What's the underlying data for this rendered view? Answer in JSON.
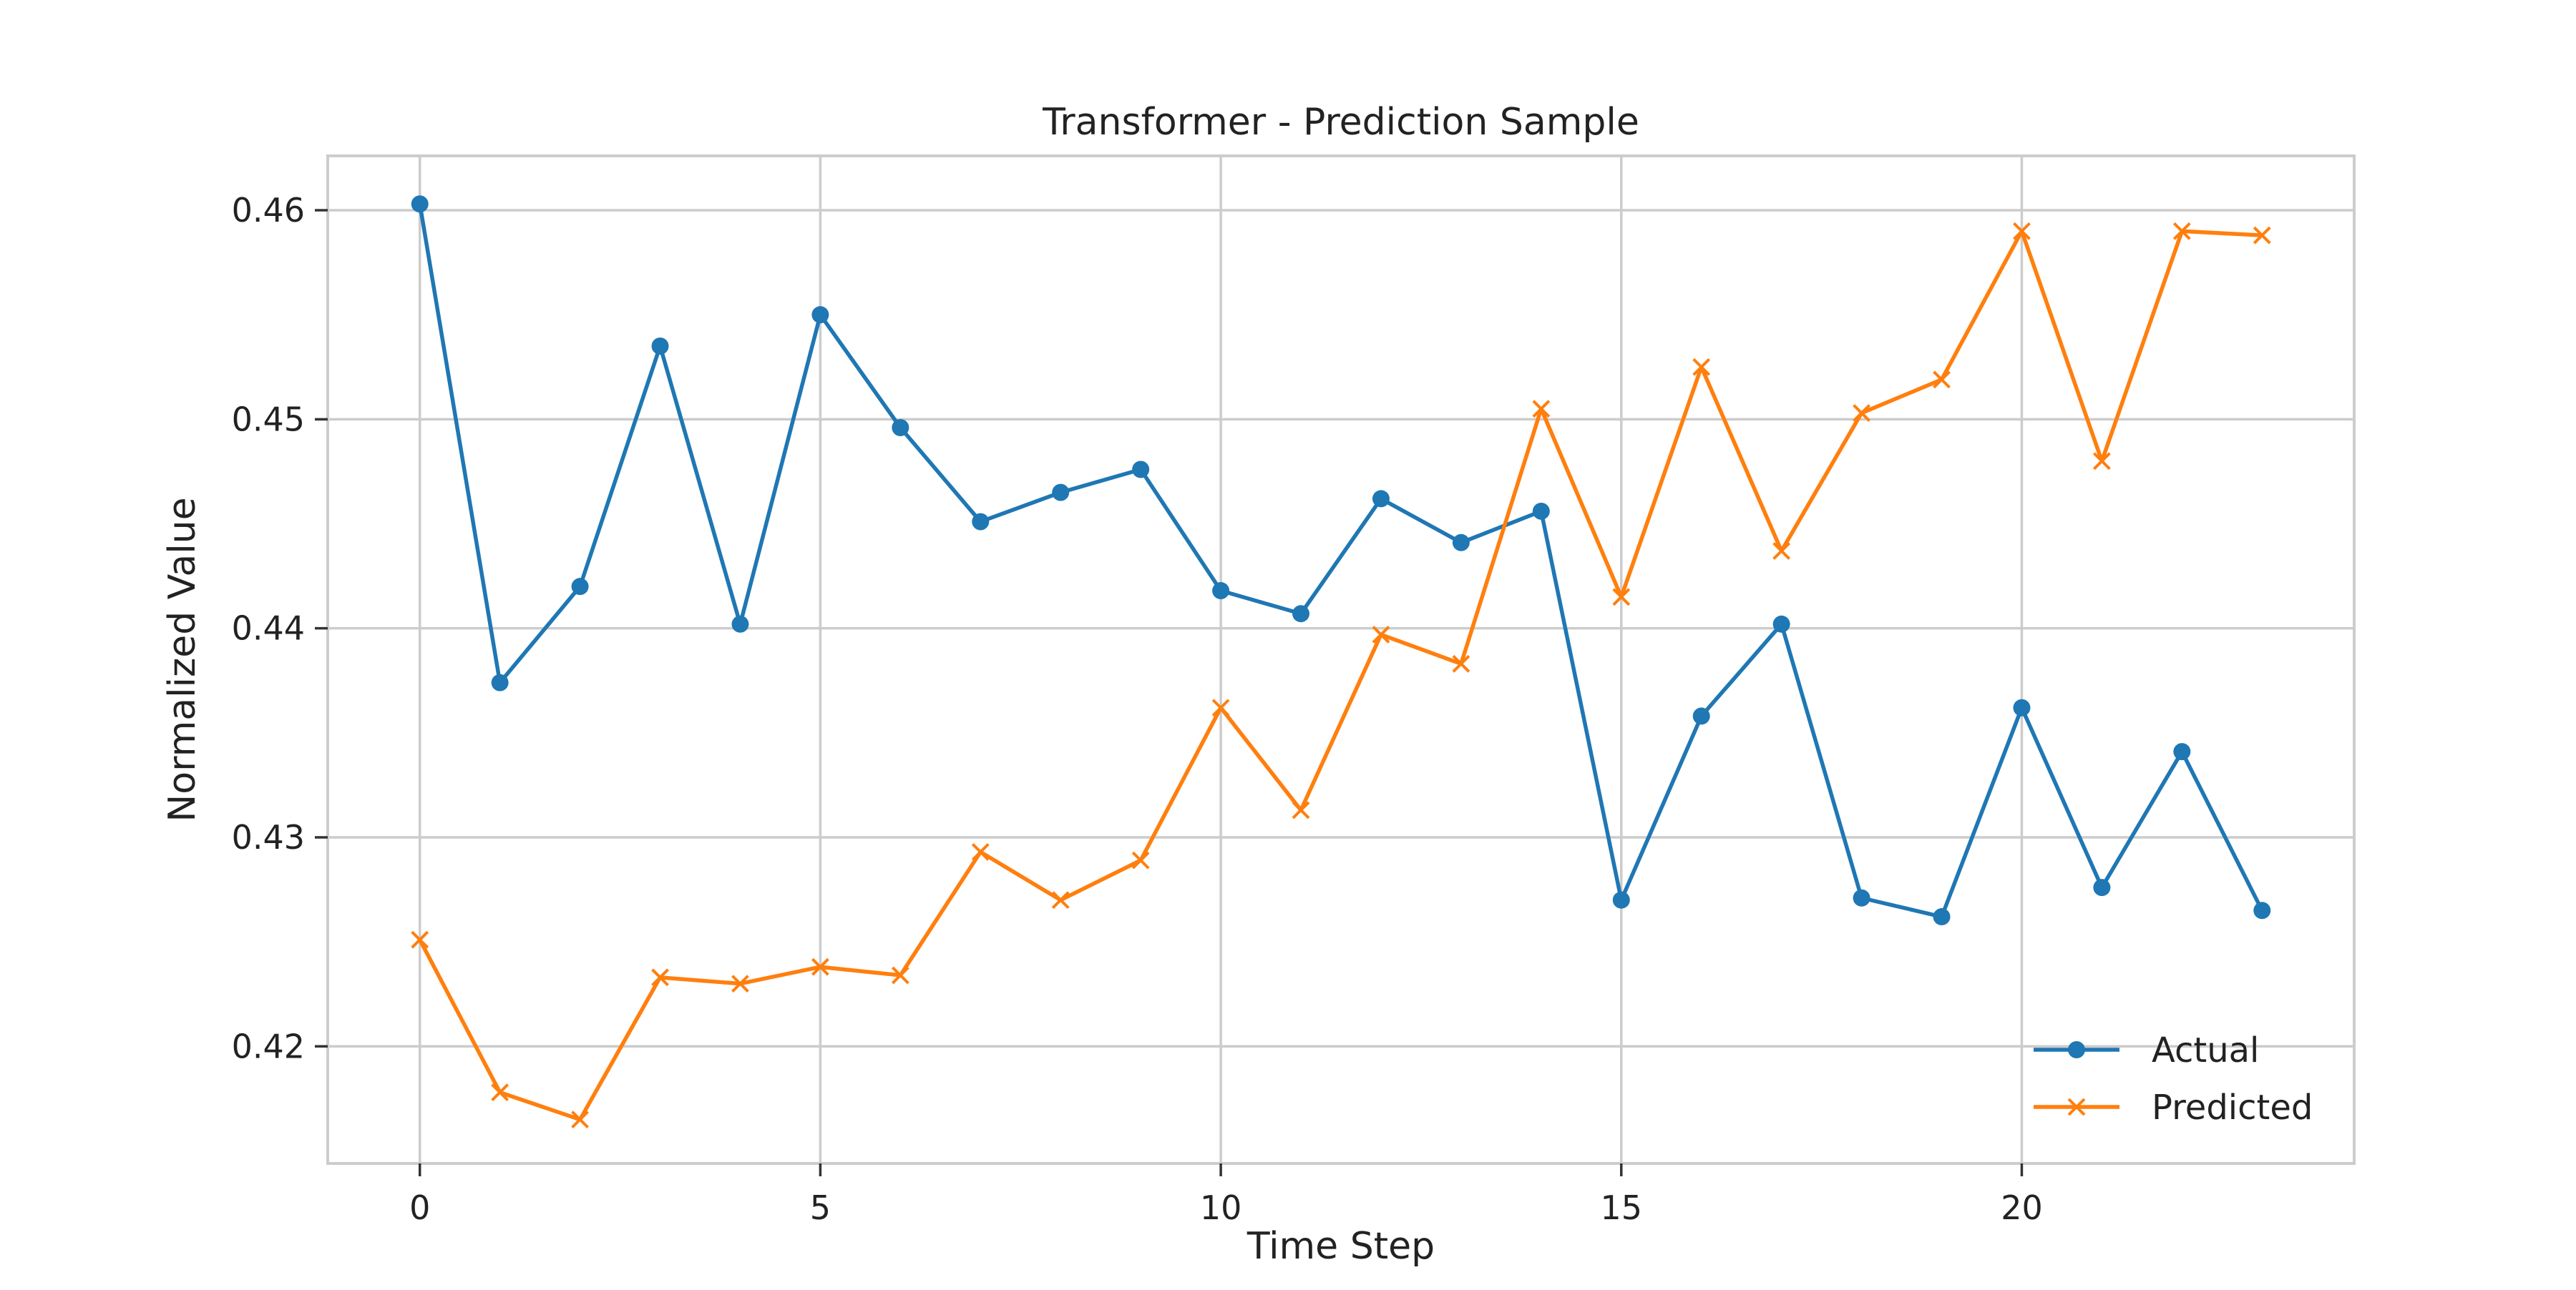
{
  "chart_data": {
    "type": "line",
    "title": "Transformer - Prediction Sample",
    "xlabel": "Time Step",
    "ylabel": "Normalized Value",
    "xlim": [
      -1.15,
      24.15
    ],
    "ylim": [
      0.4144,
      0.4626
    ],
    "xticks": [
      0,
      5,
      10,
      15,
      20
    ],
    "xtick_labels": [
      "0",
      "5",
      "10",
      "15",
      "20"
    ],
    "yticks": [
      0.42,
      0.43,
      0.44,
      0.45,
      0.46
    ],
    "ytick_labels": [
      "0.42",
      "0.43",
      "0.44",
      "0.45",
      "0.46"
    ],
    "grid": true,
    "legend_position": "lower-right",
    "x": [
      0,
      1,
      2,
      3,
      4,
      5,
      6,
      7,
      8,
      9,
      10,
      11,
      12,
      13,
      14,
      15,
      16,
      17,
      18,
      19,
      20,
      21,
      22,
      23
    ],
    "series": [
      {
        "name": "Actual",
        "color": "#1f77b4",
        "marker": "circle",
        "values": [
          0.4603,
          0.4374,
          0.442,
          0.4535,
          0.4402,
          0.455,
          0.4496,
          0.4451,
          0.4465,
          0.4476,
          0.4418,
          0.4407,
          0.4462,
          0.4441,
          0.4456,
          0.427,
          0.4358,
          0.4402,
          0.4271,
          0.4262,
          0.4362,
          0.4276,
          0.4341,
          0.4265
        ]
      },
      {
        "name": "Predicted",
        "color": "#ff7f0e",
        "marker": "x",
        "values": [
          0.4251,
          0.4178,
          0.4165,
          0.4233,
          0.423,
          0.4238,
          0.4234,
          0.4293,
          0.427,
          0.4289,
          0.4362,
          0.4313,
          0.4397,
          0.4383,
          0.4505,
          0.4415,
          0.4525,
          0.4437,
          0.4503,
          0.4519,
          0.459,
          0.448,
          0.459,
          0.4588
        ]
      }
    ]
  }
}
